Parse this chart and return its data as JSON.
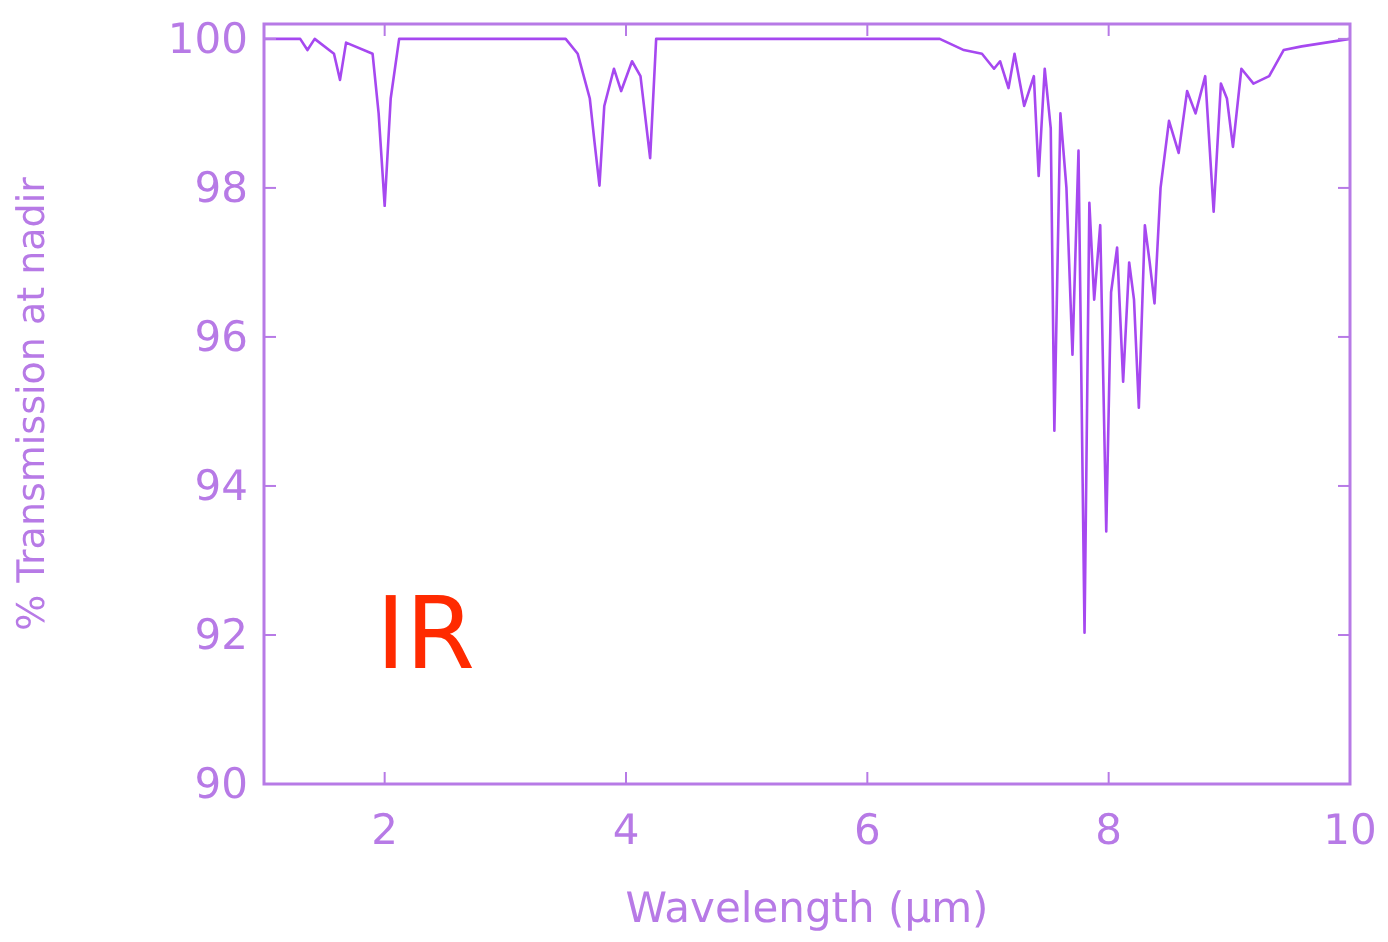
{
  "chart_data": {
    "type": "line",
    "xlabel": "Wavelength (μm)",
    "ylabel": "% Transmission at nadir",
    "xlim": [
      1,
      10
    ],
    "ylim": [
      90,
      100.2
    ],
    "xticks": [
      2,
      4,
      6,
      8,
      10
    ],
    "yticks": [
      90,
      92,
      94,
      96,
      98,
      100
    ],
    "grid": false,
    "annotations": [
      "IR"
    ],
    "series": [
      {
        "color": "#a648f0",
        "x": [
          1.0,
          1.3,
          1.36,
          1.42,
          1.58,
          1.63,
          1.68,
          1.9,
          1.95,
          2.0,
          2.05,
          2.12,
          3.5,
          3.6,
          3.7,
          3.74,
          3.78,
          3.82,
          3.9,
          3.96,
          4.05,
          4.12,
          4.2,
          4.25,
          6.6,
          6.8,
          6.95,
          7.05,
          7.1,
          7.17,
          7.22,
          7.3,
          7.38,
          7.42,
          7.47,
          7.52,
          7.55,
          7.6,
          7.65,
          7.7,
          7.75,
          7.8,
          7.84,
          7.88,
          7.93,
          7.98,
          8.02,
          8.07,
          8.12,
          8.17,
          8.21,
          8.25,
          8.3,
          8.34,
          8.38,
          8.43,
          8.5,
          8.58,
          8.65,
          8.72,
          8.8,
          8.87,
          8.93,
          8.98,
          9.03,
          9.1,
          9.2,
          9.33,
          9.45,
          9.6,
          10.0
        ],
        "values": [
          100.0,
          100.0,
          99.85,
          100.0,
          99.8,
          99.45,
          99.95,
          99.8,
          99.0,
          97.76,
          99.2,
          100.0,
          100.0,
          99.8,
          99.2,
          98.6,
          98.03,
          99.1,
          99.6,
          99.3,
          99.7,
          99.5,
          98.4,
          100.0,
          100.0,
          99.85,
          99.8,
          99.6,
          99.7,
          99.34,
          99.8,
          99.1,
          99.5,
          98.16,
          99.6,
          98.8,
          94.74,
          99.0,
          98.0,
          95.76,
          98.5,
          92.03,
          97.8,
          96.5,
          97.5,
          93.39,
          96.6,
          97.2,
          95.4,
          97.0,
          96.5,
          95.05,
          97.5,
          97.0,
          96.45,
          98.0,
          98.9,
          98.47,
          99.3,
          99.0,
          99.5,
          97.68,
          99.4,
          99.2,
          98.55,
          99.6,
          99.4,
          99.5,
          99.85,
          99.9,
          100.0
        ]
      }
    ]
  }
}
